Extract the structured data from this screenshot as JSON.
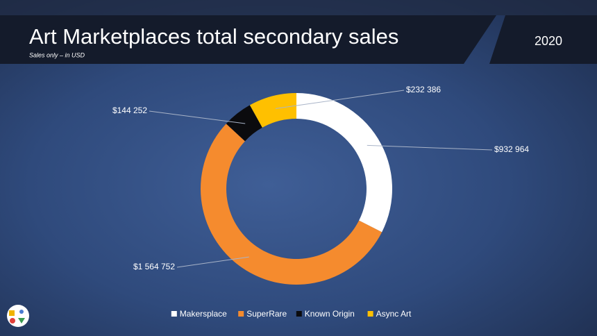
{
  "chart_data": {
    "type": "donut",
    "title": "Art Marketplaces total secondary sales",
    "subtitle": "Sales only – in USD",
    "year": "2020",
    "categories": [
      "Makersplace",
      "SuperRare",
      "Known Origin",
      "Async Art"
    ],
    "values": [
      932964,
      1564752,
      144252,
      232386
    ],
    "value_labels": [
      "$932 964",
      "$1 564 752",
      "$144 252",
      "$232 386"
    ],
    "colors": [
      "#ffffff",
      "#f58b2e",
      "#0b0b0e",
      "#ffc000"
    ],
    "legend": "bottom"
  }
}
